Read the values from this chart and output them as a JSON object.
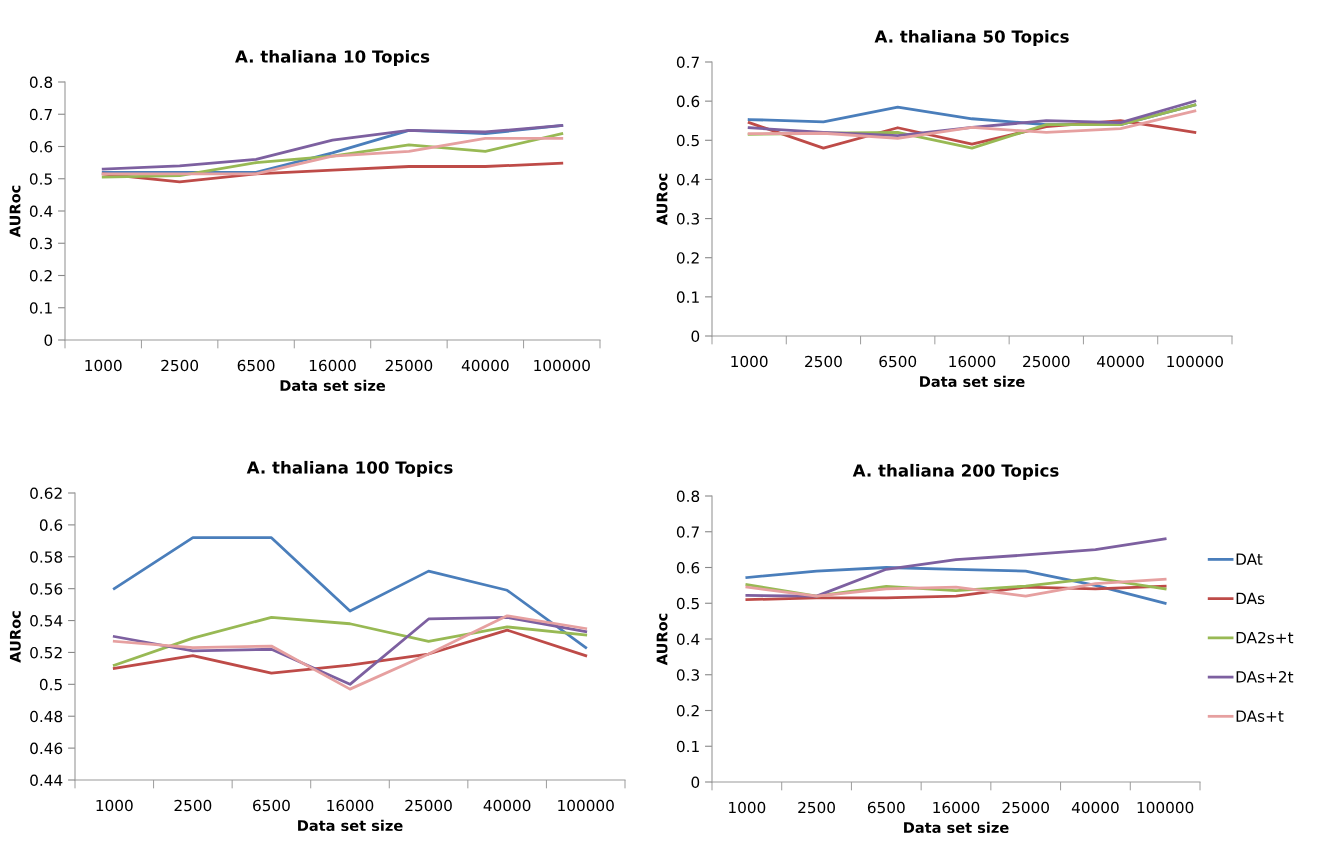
{
  "chart_data": [
    {
      "type": "line",
      "title": "A. thaliana 10 Topics",
      "xlabel": "Data set size",
      "ylabel": "AURoc",
      "categories": [
        "1000",
        "2500",
        "6500",
        "16000",
        "25000",
        "40000",
        "100000"
      ],
      "ylim": [
        0,
        0.8
      ],
      "yticks": [
        {
          "value": 0,
          "label": "0"
        },
        0.1,
        0.2,
        0.3,
        0.4,
        0.5,
        0.6,
        0.7,
        0.8
      ],
      "grid": false,
      "legend": false,
      "series": [
        {
          "color": "#4a7ebb",
          "values": [
            0.52,
            0.52,
            0.52,
            0.58,
            0.65,
            0.64,
            0.665
          ]
        },
        {
          "color": "#be4b48",
          "values": [
            0.515,
            0.49,
            0.515,
            0.527,
            0.538,
            0.538,
            0.548
          ]
        },
        {
          "color": "#98b954",
          "values": [
            0.505,
            0.51,
            0.55,
            0.57,
            0.605,
            0.585,
            0.64
          ]
        },
        {
          "color": "#7d60a0",
          "values": [
            0.53,
            0.54,
            0.56,
            0.62,
            0.65,
            0.645,
            0.665
          ]
        },
        {
          "color": "#e6a0a0",
          "values": [
            0.515,
            0.515,
            0.515,
            0.57,
            0.585,
            0.625,
            0.625
          ]
        }
      ]
    },
    {
      "type": "line",
      "title": "A. thaliana 50 Topics",
      "xlabel": "Data set size",
      "ylabel": "AURoc",
      "categories": [
        "1000",
        "2500",
        "6500",
        "16000",
        "25000",
        "40000",
        "100000"
      ],
      "ylim": [
        0,
        0.7
      ],
      "yticks": [
        {
          "value": 0,
          "label": "0"
        },
        0.1,
        0.2,
        0.3,
        0.4,
        0.5,
        0.6,
        0.7
      ],
      "grid": false,
      "legend": false,
      "series": [
        {
          "color": "#4a7ebb",
          "values": [
            0.553,
            0.547,
            0.585,
            0.555,
            0.54,
            0.54,
            0.59
          ]
        },
        {
          "color": "#be4b48",
          "values": [
            0.545,
            0.48,
            0.532,
            0.49,
            0.535,
            0.55,
            0.52
          ]
        },
        {
          "color": "#98b954",
          "values": [
            0.515,
            0.518,
            0.52,
            0.48,
            0.54,
            0.54,
            0.59
          ]
        },
        {
          "color": "#7d60a0",
          "values": [
            0.532,
            0.52,
            0.512,
            0.533,
            0.55,
            0.545,
            0.6
          ]
        },
        {
          "color": "#e6a0a0",
          "values": [
            0.517,
            0.518,
            0.505,
            0.533,
            0.52,
            0.53,
            0.575
          ]
        }
      ]
    },
    {
      "type": "line",
      "title": "A. thaliana 100 Topics",
      "xlabel": "Data set size",
      "ylabel": "AURoc",
      "categories": [
        "1000",
        "2500",
        "6500",
        "16000",
        "25000",
        "40000",
        "100000"
      ],
      "ylim": [
        0.44,
        0.62
      ],
      "yticks": [
        0.44,
        0.46,
        0.48,
        {
          "value": 0.5,
          "label": "0.5"
        },
        0.52,
        0.54,
        0.56,
        0.58,
        {
          "value": 0.6,
          "label": "0.6"
        },
        0.62
      ],
      "grid": false,
      "legend": false,
      "series": [
        {
          "color": "#4a7ebb",
          "values": [
            0.56,
            0.592,
            0.592,
            0.546,
            0.571,
            0.559,
            0.523
          ]
        },
        {
          "color": "#be4b48",
          "values": [
            0.51,
            0.518,
            0.507,
            0.512,
            0.519,
            0.534,
            0.518
          ]
        },
        {
          "color": "#98b954",
          "values": [
            0.512,
            0.529,
            0.542,
            0.538,
            0.527,
            0.536,
            0.531
          ]
        },
        {
          "color": "#7d60a0",
          "values": [
            0.53,
            0.521,
            0.522,
            0.5,
            0.541,
            0.542,
            0.533
          ]
        },
        {
          "color": "#e6a0a0",
          "values": [
            0.527,
            0.523,
            0.524,
            0.497,
            0.519,
            0.543,
            0.535
          ]
        }
      ]
    },
    {
      "type": "line",
      "title": "A. thaliana 200 Topics",
      "xlabel": "Data set size",
      "ylabel": "AURoc",
      "categories": [
        "1000",
        "2500",
        "6500",
        "16000",
        "25000",
        "40000",
        "100000"
      ],
      "ylim": [
        0,
        0.8
      ],
      "yticks": [
        {
          "value": 0,
          "label": "0"
        },
        0.1,
        0.2,
        0.3,
        0.4,
        0.5,
        0.6,
        0.7,
        0.8
      ],
      "grid": false,
      "legend": "right",
      "series": [
        {
          "name": "DAt",
          "color": "#4a7ebb",
          "values": [
            0.572,
            0.59,
            0.6,
            0.595,
            0.59,
            0.55,
            0.5
          ]
        },
        {
          "name": "DAs",
          "color": "#be4b48",
          "values": [
            0.51,
            0.515,
            0.515,
            0.52,
            0.545,
            0.54,
            0.548
          ]
        },
        {
          "name": "DA2s+t",
          "color": "#98b954",
          "values": [
            0.552,
            0.52,
            0.547,
            0.535,
            0.548,
            0.57,
            0.54
          ]
        },
        {
          "name": "DAs+2t",
          "color": "#7d60a0",
          "values": [
            0.522,
            0.52,
            0.595,
            0.622,
            0.635,
            0.65,
            0.68
          ]
        },
        {
          "name": "DAs+t",
          "color": "#e6a0a0",
          "values": [
            0.545,
            0.52,
            0.54,
            0.545,
            0.52,
            0.555,
            0.567
          ]
        }
      ]
    }
  ]
}
